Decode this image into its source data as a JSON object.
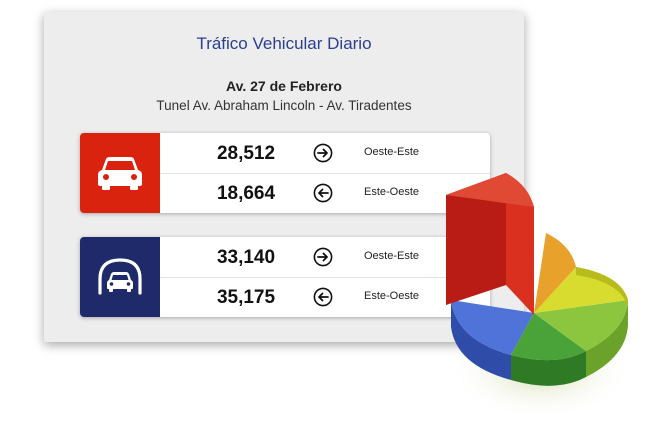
{
  "header": {
    "title": "Tráfico Vehicular Diario",
    "road": "Av. 27 de Febrero",
    "tunnel": "Tunel Av. Abraham Lincoln - Av. Tiradentes"
  },
  "cards": [
    {
      "icon": "car-icon",
      "color": "#d9230f",
      "rows": [
        {
          "count": "28,512",
          "arrow": "arrow-right-icon",
          "direction": "Oeste-Este"
        },
        {
          "count": "18,664",
          "arrow": "arrow-left-icon",
          "direction": "Este-Oeste"
        }
      ]
    },
    {
      "icon": "tunnel-car-icon",
      "color": "#1f2a6b",
      "rows": [
        {
          "count": "33,140",
          "arrow": "arrow-right-icon",
          "direction": "Oeste-Este"
        },
        {
          "count": "35,175",
          "arrow": "arrow-left-icon",
          "direction": "Este-Oeste"
        }
      ]
    }
  ],
  "decoration": {
    "pie_icon": "pie-chart-3d-icon",
    "slice_colors": [
      "#c8201a",
      "#e8a12a",
      "#d7dc2e",
      "#8cc63f",
      "#4aa339",
      "#3f63c8"
    ]
  }
}
